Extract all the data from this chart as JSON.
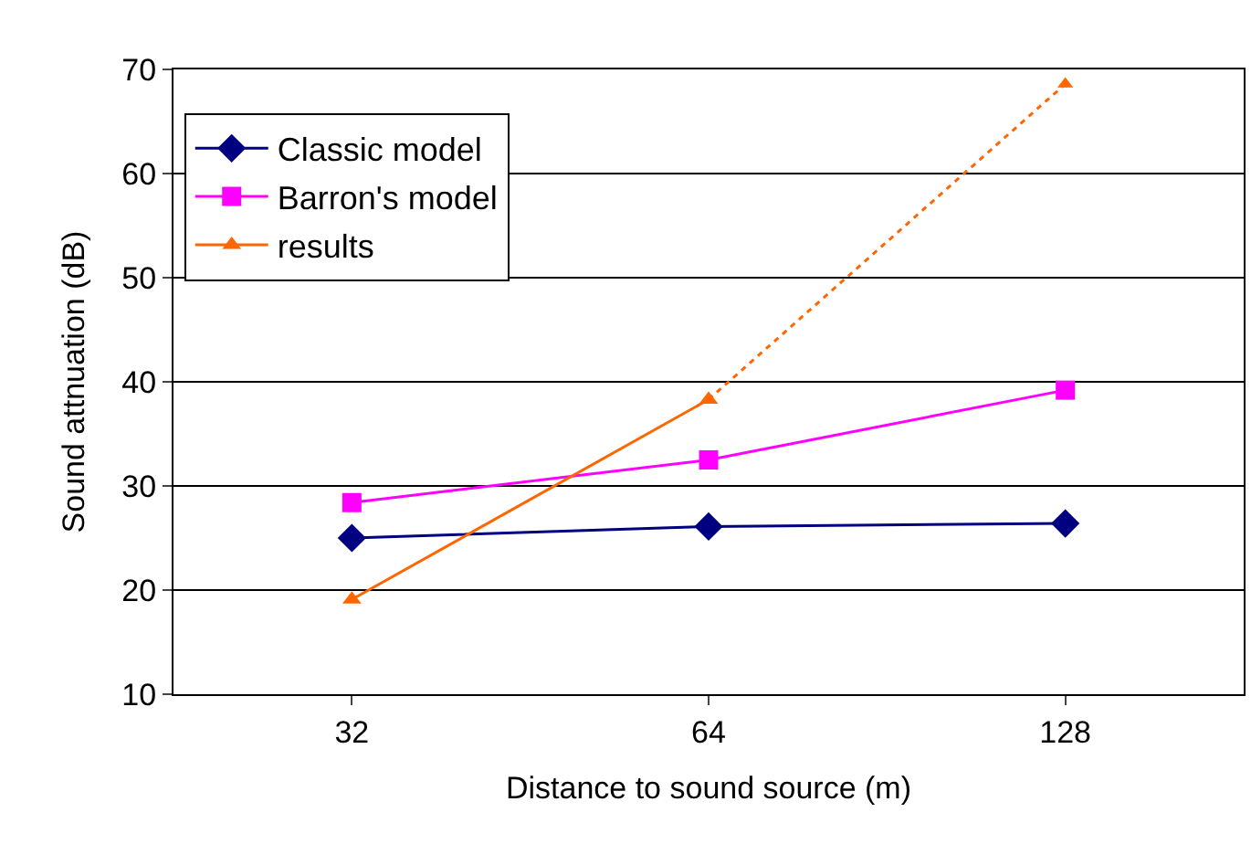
{
  "chart_data": {
    "type": "line",
    "xlabel": "Distance to sound source (m)",
    "ylabel": "Sound attnuation (dB)",
    "categories": [
      "32",
      "64",
      "128"
    ],
    "series": [
      {
        "name": "Classic model",
        "color": "#000080",
        "marker": "diamond",
        "line_style": "solid",
        "values": [
          25.0,
          26.1,
          26.4
        ]
      },
      {
        "name": "Barron's model",
        "color": "#ff00ff",
        "marker": "square",
        "line_style": "solid",
        "values": [
          28.4,
          32.5,
          39.2
        ]
      },
      {
        "name": "results",
        "color": "#ff6600",
        "marker": "triangle",
        "line_style": "solid",
        "values": [
          19.1,
          38.3,
          null
        ]
      },
      {
        "color": "#ff6600",
        "marker": "triangle",
        "line_style": "dotted",
        "values": [
          null,
          38.3,
          68.6
        ]
      }
    ],
    "ylim": [
      10,
      70
    ],
    "yticks": [
      10,
      20,
      30,
      40,
      50,
      60,
      70
    ],
    "grid": "y",
    "legend": "top left"
  }
}
